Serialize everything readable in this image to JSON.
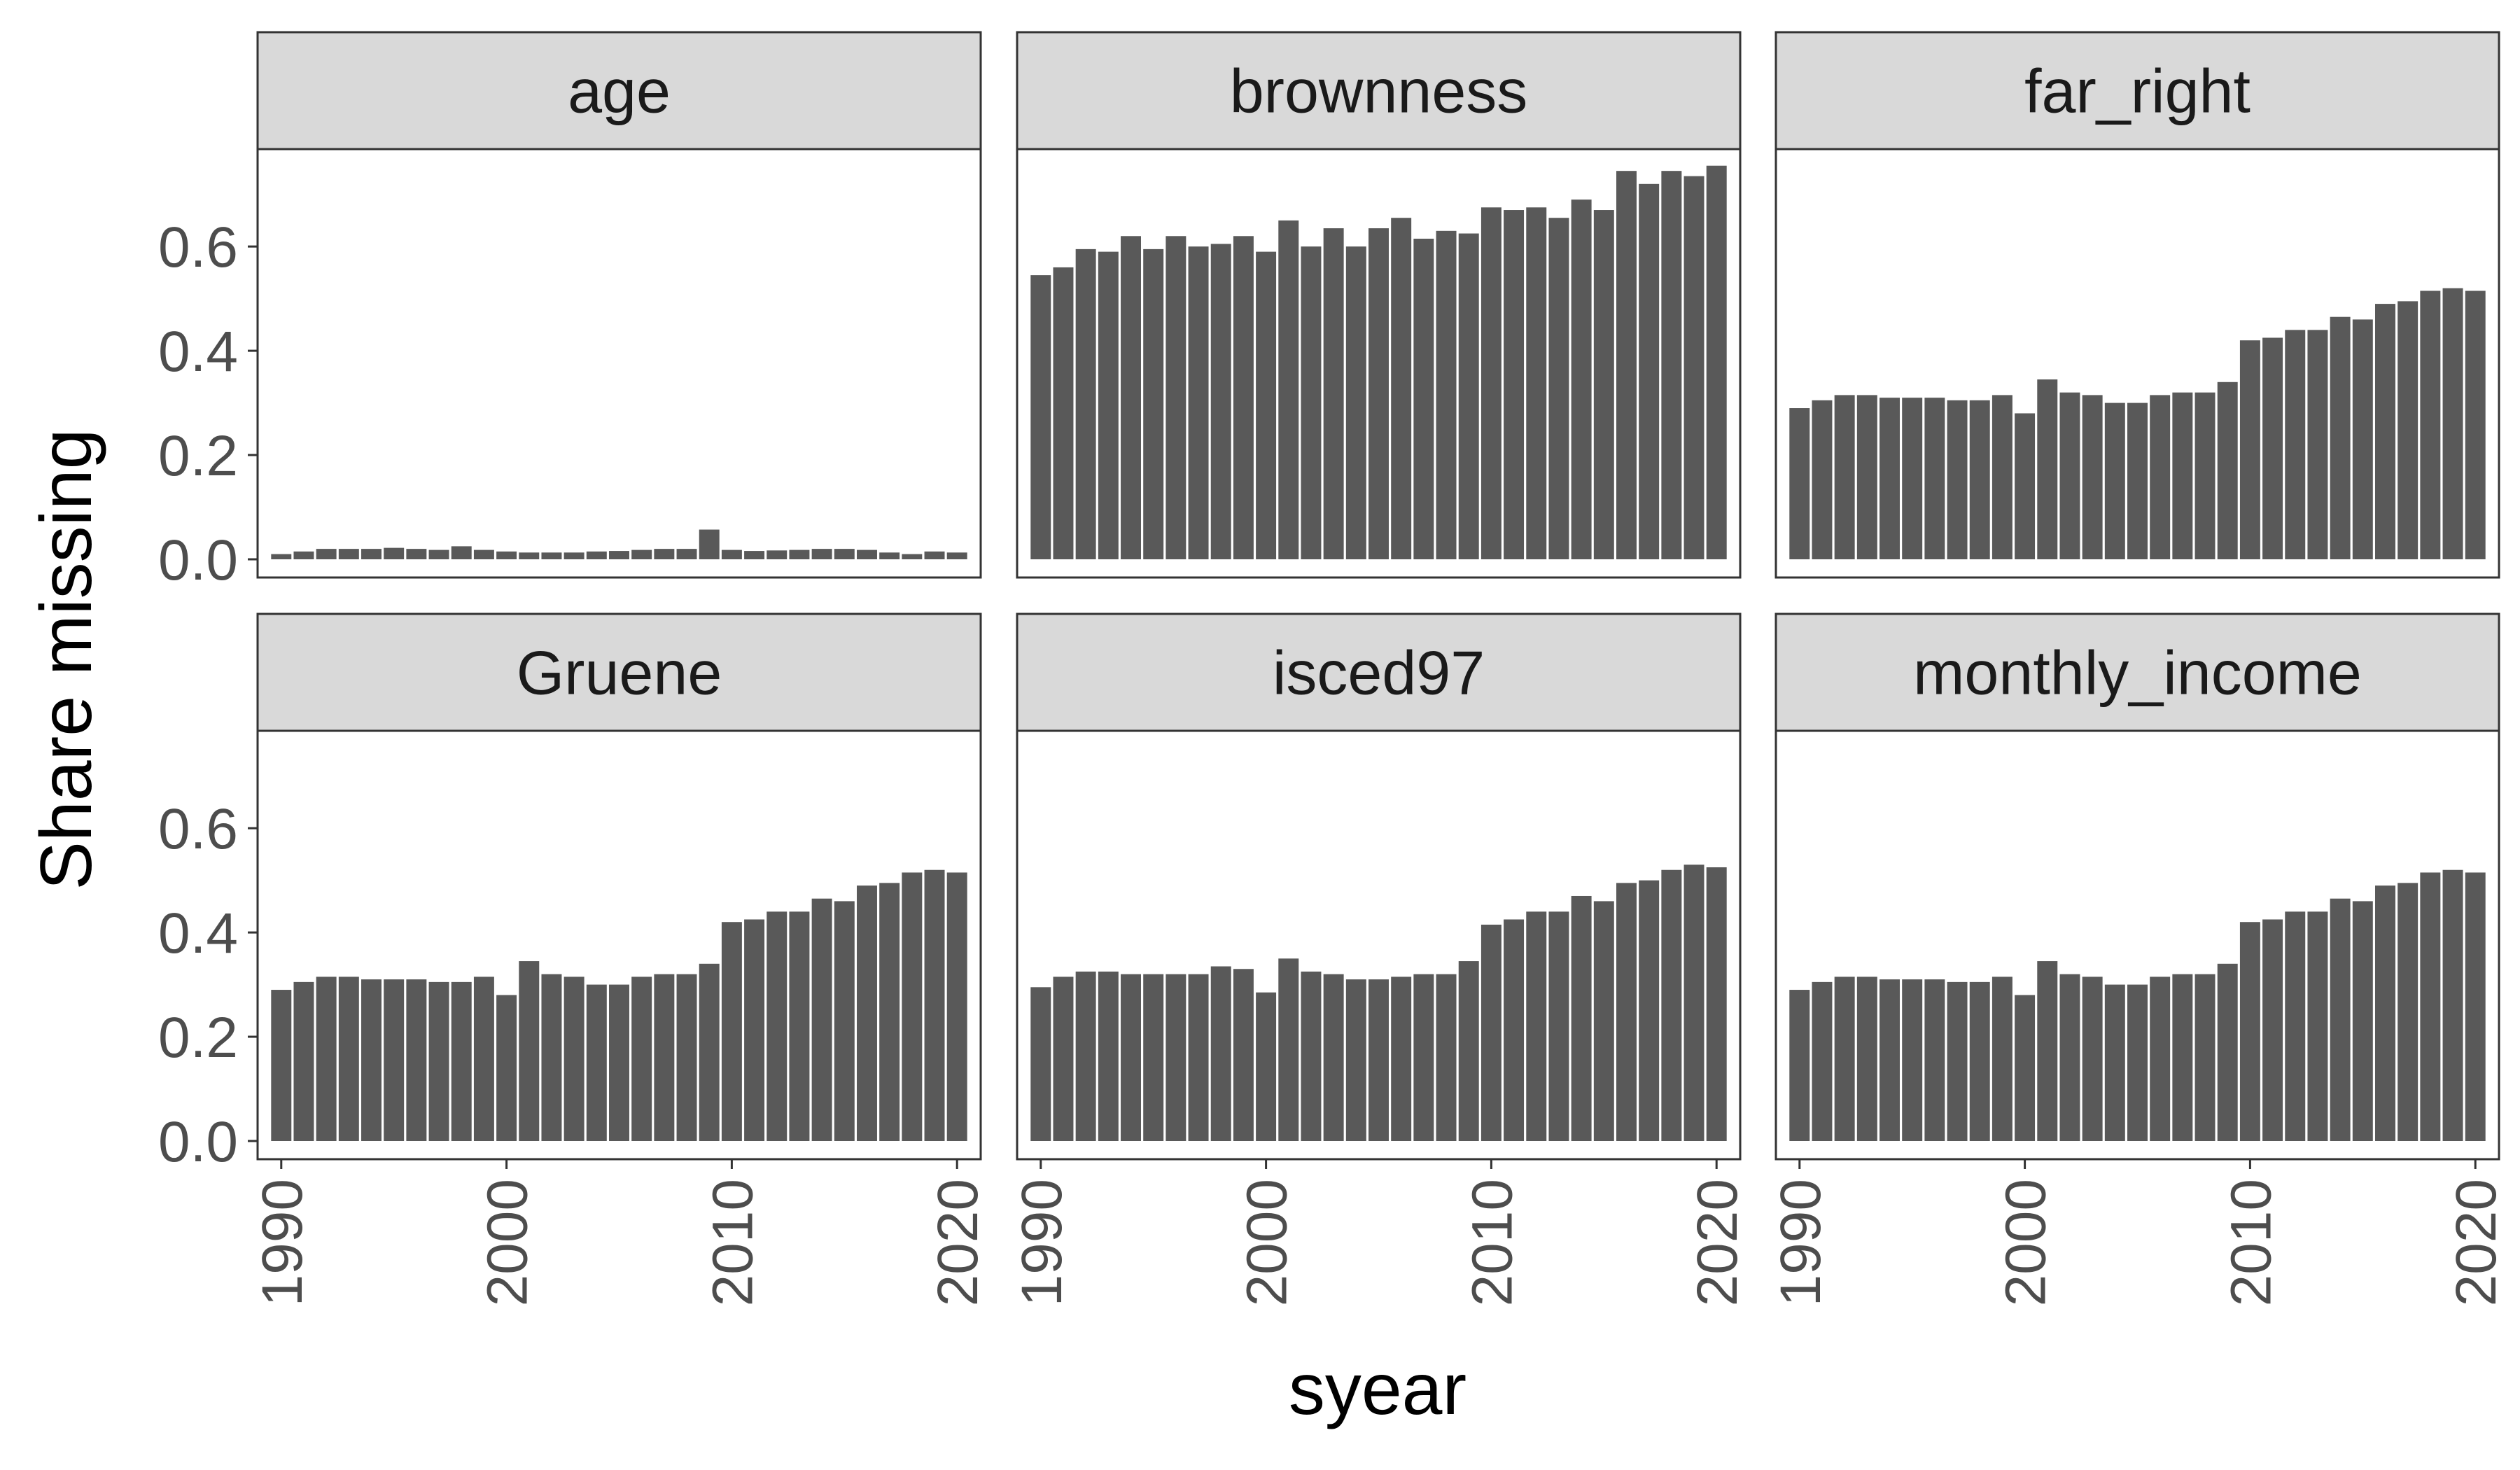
{
  "chart_data": {
    "type": "bar",
    "facet_by": "variable",
    "layout": {
      "rows": 2,
      "cols": 3
    },
    "xlabel": "syear",
    "ylabel": "Share missing",
    "ylim": [
      0,
      0.78
    ],
    "yticks": [
      0.0,
      0.2,
      0.4,
      0.6
    ],
    "ytick_labels": [
      "0.0",
      "0.2",
      "0.4",
      "0.6"
    ],
    "xticks": [
      1990,
      2000,
      2010,
      2020
    ],
    "xtick_labels": [
      "1990",
      "2000",
      "2010",
      "2020"
    ],
    "x": [
      1990,
      1991,
      1992,
      1993,
      1994,
      1995,
      1996,
      1997,
      1998,
      1999,
      2000,
      2001,
      2002,
      2003,
      2004,
      2005,
      2006,
      2007,
      2008,
      2009,
      2010,
      2011,
      2012,
      2013,
      2014,
      2015,
      2016,
      2017,
      2018,
      2019,
      2020
    ],
    "grid": false,
    "bar_color": "#595959",
    "strip_fill": "#d9d9d9",
    "panels": [
      {
        "label": "age",
        "values": [
          0.01,
          0.015,
          0.02,
          0.02,
          0.02,
          0.022,
          0.02,
          0.018,
          0.025,
          0.018,
          0.015,
          0.013,
          0.013,
          0.013,
          0.015,
          0.016,
          0.018,
          0.02,
          0.02,
          0.057,
          0.018,
          0.016,
          0.017,
          0.018,
          0.02,
          0.02,
          0.018,
          0.013,
          0.01,
          0.015,
          0.013
        ]
      },
      {
        "label": "brownness",
        "values": [
          0.545,
          0.56,
          0.595,
          0.59,
          0.62,
          0.595,
          0.62,
          0.6,
          0.605,
          0.62,
          0.59,
          0.65,
          0.6,
          0.635,
          0.6,
          0.635,
          0.655,
          0.615,
          0.63,
          0.625,
          0.675,
          0.67,
          0.675,
          0.655,
          0.69,
          0.67,
          0.745,
          0.72,
          0.745,
          0.735,
          0.755
        ]
      },
      {
        "label": "far_right",
        "values": [
          0.29,
          0.305,
          0.315,
          0.315,
          0.31,
          0.31,
          0.31,
          0.305,
          0.305,
          0.315,
          0.28,
          0.345,
          0.32,
          0.315,
          0.3,
          0.3,
          0.315,
          0.32,
          0.32,
          0.34,
          0.42,
          0.425,
          0.44,
          0.44,
          0.465,
          0.46,
          0.49,
          0.495,
          0.515,
          0.52,
          0.515
        ]
      },
      {
        "label": "Gruene",
        "values": [
          0.29,
          0.305,
          0.315,
          0.315,
          0.31,
          0.31,
          0.31,
          0.305,
          0.305,
          0.315,
          0.28,
          0.345,
          0.32,
          0.315,
          0.3,
          0.3,
          0.315,
          0.32,
          0.32,
          0.34,
          0.42,
          0.425,
          0.44,
          0.44,
          0.465,
          0.46,
          0.49,
          0.495,
          0.515,
          0.52,
          0.515
        ]
      },
      {
        "label": "isced97",
        "values": [
          0.295,
          0.315,
          0.325,
          0.325,
          0.32,
          0.32,
          0.32,
          0.32,
          0.335,
          0.33,
          0.285,
          0.35,
          0.325,
          0.32,
          0.31,
          0.31,
          0.315,
          0.32,
          0.32,
          0.345,
          0.415,
          0.425,
          0.44,
          0.44,
          0.47,
          0.46,
          0.495,
          0.5,
          0.52,
          0.53,
          0.525
        ]
      },
      {
        "label": "monthly_income",
        "values": [
          0.29,
          0.305,
          0.315,
          0.315,
          0.31,
          0.31,
          0.31,
          0.305,
          0.305,
          0.315,
          0.28,
          0.345,
          0.32,
          0.315,
          0.3,
          0.3,
          0.315,
          0.32,
          0.32,
          0.34,
          0.42,
          0.425,
          0.44,
          0.44,
          0.465,
          0.46,
          0.49,
          0.495,
          0.515,
          0.52,
          0.515
        ]
      }
    ]
  }
}
